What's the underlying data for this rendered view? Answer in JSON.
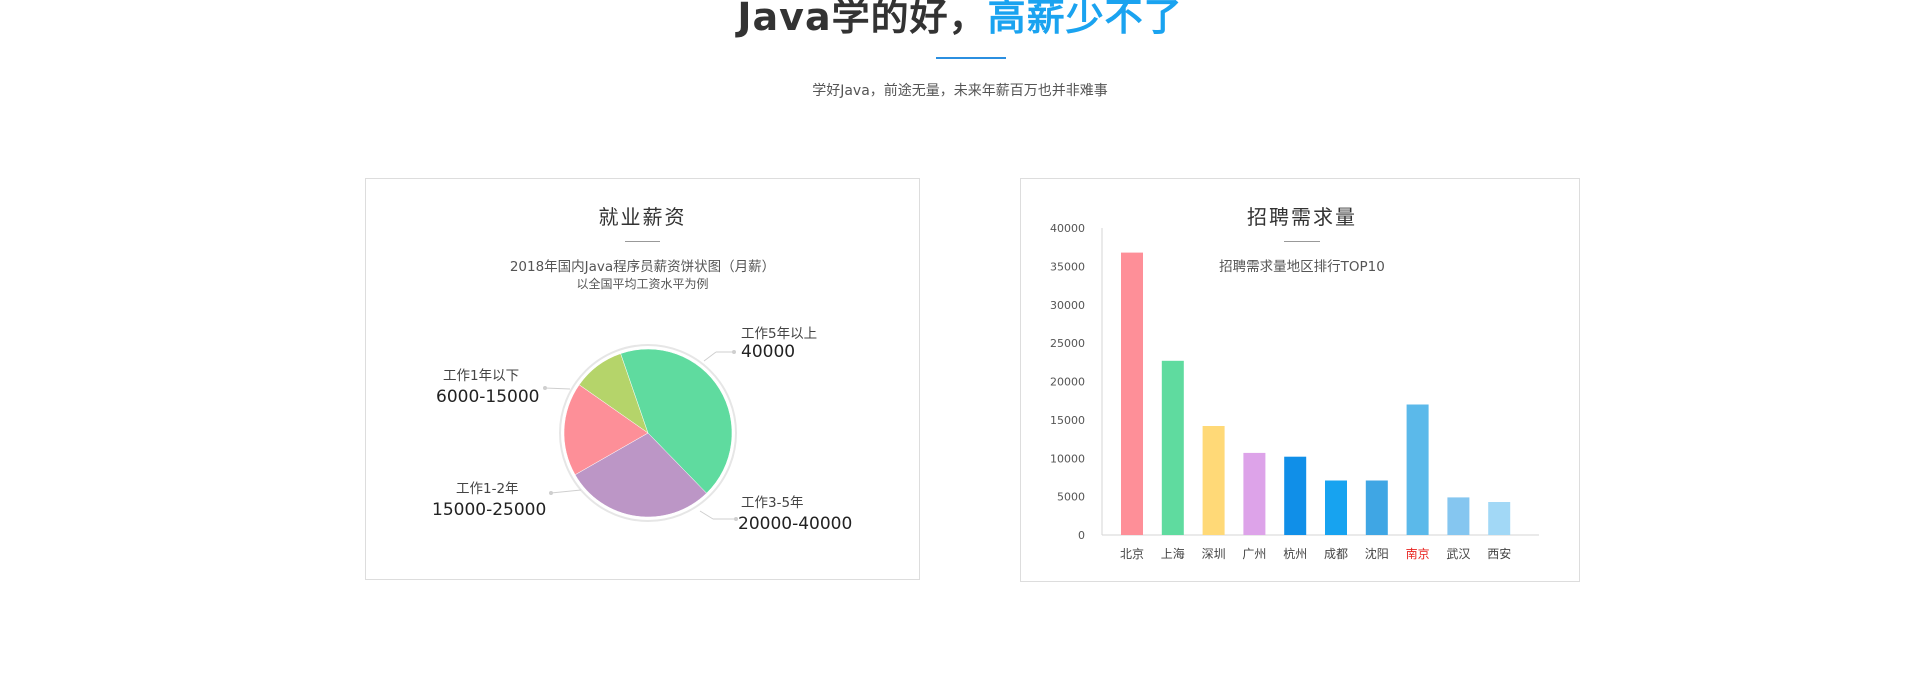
{
  "header": {
    "title_part1": "Java学的好，",
    "title_part2": "高薪少不了",
    "subtitle": "学好Java，前途无量，未来年薪百万也并非难事"
  },
  "salary_card": {
    "title": "就业薪资",
    "subtitle": "2018年国内Java程序员薪资饼状图（月薪）",
    "note": "以全国平均工资水平为例",
    "labels": [
      {
        "label": "工作1年以下",
        "value": "6000-15000"
      },
      {
        "label": "工作1-2年",
        "value": "15000-25000"
      },
      {
        "label": "工作3-5年",
        "value": "20000-40000"
      },
      {
        "label": "工作5年以上",
        "value": "40000"
      }
    ]
  },
  "demand_card": {
    "title": "招聘需求量",
    "subtitle": "招聘需求量地区排行TOP10"
  },
  "colors": {
    "accent": "#1aa3f0",
    "highlight_category": "#e8231f"
  },
  "chart_data": [
    {
      "type": "pie",
      "title": "2018年国内Java程序员薪资饼状图（月薪）",
      "categories": [
        "工作1年以下",
        "工作1-2年",
        "工作3-5年",
        "工作5年以上"
      ],
      "values": [
        10,
        18,
        29,
        43
      ],
      "colors": [
        "#b5d46a",
        "#fd8f98",
        "#bc96c6",
        "#5fdb9f"
      ],
      "value_labels": [
        "6000-15000",
        "15000-25000",
        "20000-40000",
        "40000"
      ]
    },
    {
      "type": "bar",
      "title": "招聘需求量地区排行TOP10",
      "categories": [
        "北京",
        "上海",
        "深圳",
        "广州",
        "杭州",
        "成都",
        "沈阳",
        "南京",
        "武汉",
        "西安"
      ],
      "values": [
        36800,
        22700,
        14200,
        10700,
        10200,
        7100,
        7100,
        17000,
        4900,
        4300
      ],
      "colors": [
        "#fe8f98",
        "#5fdb9f",
        "#ffd977",
        "#dda3e9",
        "#108fe8",
        "#17a3f0",
        "#3fa6e4",
        "#5bb9ea",
        "#85c6f0",
        "#a2d8f6"
      ],
      "highlighted": "南京",
      "ylim": [
        0,
        40000
      ],
      "yticks": [
        0,
        5000,
        10000,
        15000,
        20000,
        25000,
        30000,
        35000,
        40000
      ],
      "grid": false
    }
  ]
}
